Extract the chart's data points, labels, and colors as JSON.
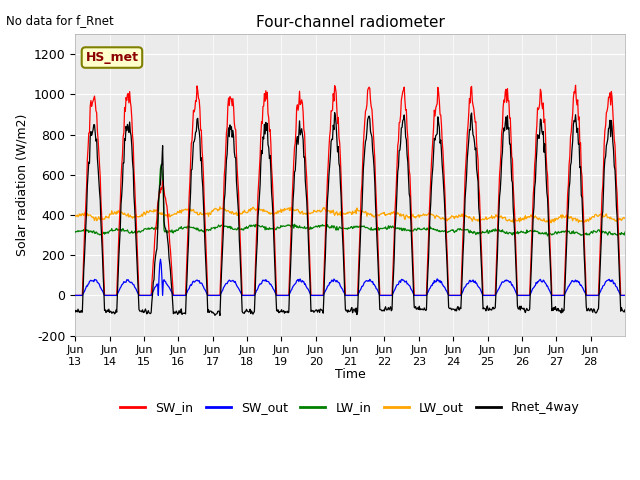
{
  "title": "Four-channel radiometer",
  "top_left_text": "No data for f_Rnet",
  "box_label": "HS_met",
  "xlabel": "Time",
  "ylabel": "Solar radiation (W/m2)",
  "ylim": [
    -200,
    1300
  ],
  "yticks": [
    -200,
    0,
    200,
    400,
    600,
    800,
    1000,
    1200
  ],
  "xticklabels": [
    "Jun\n13",
    "Jun\n14",
    "Jun\n15",
    "Jun\n16",
    "Jun\n17",
    "Jun\n18",
    "Jun\n19",
    "Jun\n20",
    "Jun\n21",
    "Jun\n22",
    "Jun\n23",
    "Jun\n24",
    "Jun\n25",
    "Jun\n26",
    "Jun\n27",
    "Jun\n28"
  ],
  "n_days": 16,
  "plot_bg_color": "#ebebeb",
  "legend_entries": [
    {
      "label": "SW_in",
      "color": "red"
    },
    {
      "label": "SW_out",
      "color": "blue"
    },
    {
      "label": "LW_in",
      "color": "green"
    },
    {
      "label": "LW_out",
      "color": "orange"
    },
    {
      "label": "Rnet_4way",
      "color": "black"
    }
  ]
}
